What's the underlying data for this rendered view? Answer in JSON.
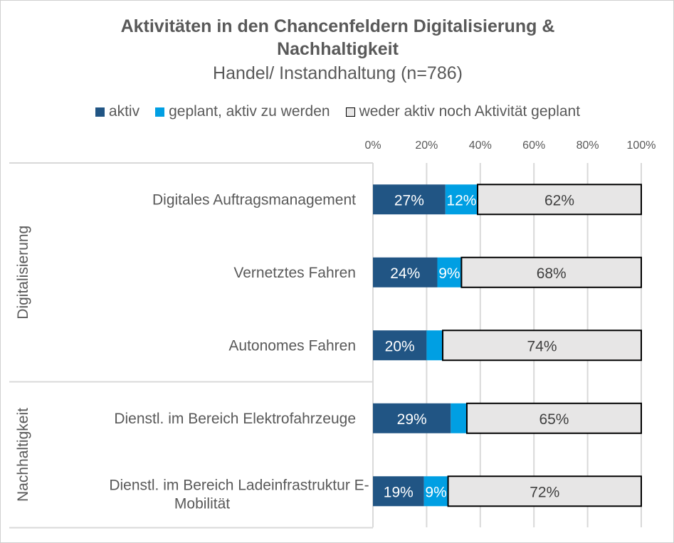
{
  "chart_data": {
    "type": "bar",
    "orientation": "horizontal",
    "stacked": true,
    "title": "Aktivitäten in den Chancenfeldern Digitalisierung & Nachhaltigkeit",
    "subtitle": "Handel/ Instandhaltung (n=786)",
    "xlim": [
      0,
      100
    ],
    "x_ticks": [
      "0%",
      "20%",
      "40%",
      "60%",
      "80%",
      "100%"
    ],
    "grid": true,
    "legend_position": "top",
    "groups": [
      {
        "label": "Digitalisierung",
        "categories": [
          0,
          1,
          2
        ]
      },
      {
        "label": "Nachhaltigkeit",
        "categories": [
          3,
          4
        ]
      }
    ],
    "categories": [
      "Digitales Auftragsmanagement",
      "Vernetztes Fahren",
      "Autonomes Fahren",
      "Dienstl. im Bereich Elektrofahrzeuge",
      "Dienstl. im Bereich Ladeinfrastruktur E-Mobilität"
    ],
    "series": [
      {
        "name": "aktiv",
        "color": "#215584",
        "values": [
          27,
          24,
          20,
          29,
          19
        ],
        "labels": [
          "27%",
          "24%",
          "20%",
          "29%",
          "19%"
        ]
      },
      {
        "name": "geplant, aktiv zu werden",
        "color": "#009fe3",
        "values": [
          12,
          9,
          6,
          6,
          9
        ],
        "labels": [
          "12%",
          "9%",
          "",
          "",
          "9%"
        ]
      },
      {
        "name": "weder aktiv noch Aktivität geplant",
        "color": "#e7e6e6",
        "values": [
          62,
          68,
          74,
          65,
          72
        ],
        "labels": [
          "62%",
          "68%",
          "74%",
          "65%",
          "72%"
        ]
      }
    ]
  }
}
